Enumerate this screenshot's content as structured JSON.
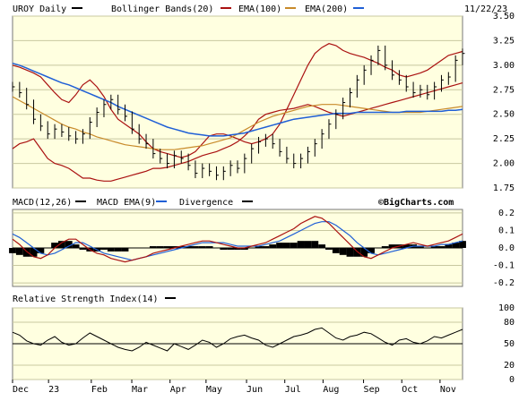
{
  "chart_data": {
    "type": "line",
    "date": "11/22/23",
    "price": {
      "title": "UROY Daily",
      "legend": [
        {
          "name": "Bollinger Bands(20)",
          "color": "#aa1111"
        },
        {
          "name": "EMA(100)",
          "color": "#c88a2a"
        },
        {
          "name": "EMA(200)",
          "color": "#1f5fd6"
        }
      ],
      "title_color": "#000000",
      "ylim": [
        1.75,
        3.5
      ],
      "yticks": [
        "3.50",
        "3.25",
        "3.00",
        "2.75",
        "2.50",
        "2.25",
        "2.00",
        "1.75"
      ],
      "close": [
        2.78,
        2.72,
        2.6,
        2.45,
        2.38,
        2.3,
        2.35,
        2.32,
        2.28,
        2.25,
        2.3,
        2.42,
        2.52,
        2.6,
        2.65,
        2.55,
        2.48,
        2.35,
        2.25,
        2.2,
        2.1,
        2.05,
        2.0,
        2.08,
        2.05,
        1.98,
        1.9,
        1.95,
        1.92,
        1.88,
        1.92,
        1.98,
        1.95,
        2.05,
        2.15,
        2.22,
        2.25,
        2.2,
        2.12,
        2.05,
        2.0,
        2.05,
        2.12,
        2.2,
        2.3,
        2.4,
        2.5,
        2.62,
        2.72,
        2.85,
        2.95,
        3.05,
        3.15,
        3.0,
        2.9,
        2.85,
        2.78,
        2.72,
        2.75,
        2.7,
        2.78,
        2.85,
        2.88,
        3.05,
        3.12
      ],
      "bb_upper": [
        3.0,
        2.98,
        2.95,
        2.92,
        2.88,
        2.8,
        2.72,
        2.65,
        2.62,
        2.7,
        2.8,
        2.85,
        2.78,
        2.68,
        2.55,
        2.45,
        2.4,
        2.35,
        2.3,
        2.22,
        2.15,
        2.12,
        2.1,
        2.08,
        2.06,
        2.08,
        2.12,
        2.2,
        2.28,
        2.3,
        2.3,
        2.28,
        2.25,
        2.22,
        2.2,
        2.22,
        2.25,
        2.3,
        2.4,
        2.55,
        2.7,
        2.85,
        3.0,
        3.12,
        3.18,
        3.22,
        3.2,
        3.15,
        3.12,
        3.1,
        3.08,
        3.05,
        3.02,
        2.98,
        2.95,
        2.9,
        2.88,
        2.9,
        2.92,
        2.95,
        3.0,
        3.05,
        3.1,
        3.12,
        3.14
      ],
      "bb_lower": [
        2.15,
        2.2,
        2.22,
        2.25,
        2.15,
        2.05,
        2.0,
        1.98,
        1.95,
        1.9,
        1.85,
        1.85,
        1.83,
        1.82,
        1.82,
        1.84,
        1.86,
        1.88,
        1.9,
        1.92,
        1.95,
        1.95,
        1.96,
        1.98,
        2.0,
        2.02,
        2.05,
        2.08,
        2.1,
        2.12,
        2.15,
        2.18,
        2.22,
        2.28,
        2.35,
        2.45,
        2.5,
        2.52,
        2.54,
        2.55,
        2.56,
        2.58,
        2.6,
        2.58,
        2.55,
        2.52,
        2.5,
        2.48,
        2.5,
        2.52,
        2.54,
        2.56,
        2.58,
        2.6,
        2.62,
        2.64,
        2.66,
        2.68,
        2.7,
        2.72,
        2.74,
        2.76,
        2.78,
        2.8,
        2.82
      ],
      "ema100": [
        2.68,
        2.64,
        2.6,
        2.56,
        2.52,
        2.48,
        2.44,
        2.4,
        2.37,
        2.35,
        2.32,
        2.3,
        2.27,
        2.25,
        2.23,
        2.21,
        2.19,
        2.18,
        2.17,
        2.16,
        2.15,
        2.14,
        2.14,
        2.14,
        2.15,
        2.16,
        2.17,
        2.18,
        2.2,
        2.22,
        2.24,
        2.26,
        2.3,
        2.34,
        2.38,
        2.42,
        2.45,
        2.48,
        2.5,
        2.52,
        2.54,
        2.56,
        2.58,
        2.59,
        2.6,
        2.6,
        2.6,
        2.59,
        2.58,
        2.57,
        2.56,
        2.55,
        2.54,
        2.53,
        2.52,
        2.52,
        2.52,
        2.52,
        2.52,
        2.53,
        2.54,
        2.55,
        2.56,
        2.57,
        2.58
      ],
      "ema200": [
        3.02,
        3.0,
        2.97,
        2.94,
        2.91,
        2.88,
        2.85,
        2.82,
        2.8,
        2.77,
        2.74,
        2.71,
        2.68,
        2.65,
        2.62,
        2.58,
        2.55,
        2.52,
        2.49,
        2.46,
        2.43,
        2.4,
        2.37,
        2.35,
        2.33,
        2.31,
        2.3,
        2.29,
        2.28,
        2.28,
        2.28,
        2.29,
        2.3,
        2.31,
        2.33,
        2.35,
        2.37,
        2.39,
        2.41,
        2.43,
        2.45,
        2.46,
        2.47,
        2.48,
        2.49,
        2.5,
        2.51,
        2.51,
        2.51,
        2.52,
        2.52,
        2.52,
        2.52,
        2.52,
        2.52,
        2.52,
        2.53,
        2.53,
        2.53,
        2.53,
        2.53,
        2.53,
        2.54,
        2.54,
        2.55
      ]
    },
    "macd": {
      "legend": [
        {
          "name": "MACD(12,26)",
          "color": "#000000"
        },
        {
          "name": "MACD EMA(9)",
          "color": "#1f5fd6"
        },
        {
          "name": "Divergence",
          "color": "#aa1111"
        }
      ],
      "watermark": "©BigCharts.com",
      "ylim": [
        -0.22,
        0.22
      ],
      "yticks": [
        "0.2",
        "0.1",
        "0.0",
        "-0.1",
        "-0.2"
      ],
      "macd": [
        0.05,
        0.02,
        -0.02,
        -0.05,
        -0.06,
        -0.04,
        0.0,
        0.03,
        0.05,
        0.05,
        0.02,
        -0.01,
        -0.03,
        -0.04,
        -0.06,
        -0.07,
        -0.08,
        -0.07,
        -0.06,
        -0.05,
        -0.03,
        -0.02,
        -0.01,
        0.0,
        0.01,
        0.02,
        0.03,
        0.04,
        0.04,
        0.03,
        0.02,
        0.01,
        0.0,
        0.0,
        0.01,
        0.02,
        0.03,
        0.05,
        0.07,
        0.09,
        0.11,
        0.14,
        0.16,
        0.18,
        0.17,
        0.14,
        0.1,
        0.06,
        0.02,
        -0.02,
        -0.05,
        -0.06,
        -0.04,
        -0.02,
        0.0,
        0.01,
        0.02,
        0.03,
        0.02,
        0.01,
        0.02,
        0.03,
        0.04,
        0.06,
        0.08
      ],
      "signal": [
        0.08,
        0.06,
        0.03,
        0.0,
        -0.03,
        -0.04,
        -0.03,
        -0.01,
        0.01,
        0.03,
        0.03,
        0.01,
        -0.01,
        -0.03,
        -0.04,
        -0.05,
        -0.06,
        -0.07,
        -0.06,
        -0.05,
        -0.04,
        -0.03,
        -0.02,
        -0.01,
        0.0,
        0.01,
        0.02,
        0.03,
        0.03,
        0.03,
        0.03,
        0.02,
        0.01,
        0.01,
        0.01,
        0.01,
        0.02,
        0.03,
        0.04,
        0.06,
        0.08,
        0.1,
        0.12,
        0.14,
        0.15,
        0.15,
        0.13,
        0.1,
        0.07,
        0.03,
        0.0,
        -0.03,
        -0.04,
        -0.03,
        -0.02,
        -0.01,
        0.0,
        0.01,
        0.01,
        0.01,
        0.01,
        0.02,
        0.02,
        0.03,
        0.04
      ]
    },
    "rsi": {
      "title": "Relative Strength Index(14)",
      "color": "#000000",
      "ylim": [
        0,
        100
      ],
      "yticks": [
        "100",
        "80",
        "50",
        "20",
        "0"
      ],
      "reference": 50,
      "values": [
        66,
        62,
        54,
        50,
        48,
        55,
        60,
        52,
        48,
        50,
        58,
        65,
        60,
        55,
        50,
        45,
        42,
        40,
        45,
        52,
        48,
        44,
        40,
        50,
        46,
        42,
        48,
        55,
        52,
        45,
        50,
        57,
        60,
        62,
        58,
        55,
        48,
        45,
        50,
        55,
        60,
        62,
        65,
        70,
        72,
        65,
        58,
        55,
        60,
        62,
        66,
        64,
        58,
        52,
        48,
        55,
        57,
        52,
        50,
        54,
        60,
        58,
        62,
        66,
        70
      ]
    },
    "xlabels": [
      "Dec",
      "23",
      "Feb",
      "Mar",
      "Apr",
      "May",
      "Jun",
      "Jul",
      "Aug",
      "Sep",
      "Oct",
      "Nov"
    ],
    "xlabel_fractions": [
      0.0,
      0.08,
      0.175,
      0.265,
      0.35,
      0.43,
      0.52,
      0.605,
      0.69,
      0.78,
      0.865,
      0.95
    ]
  }
}
